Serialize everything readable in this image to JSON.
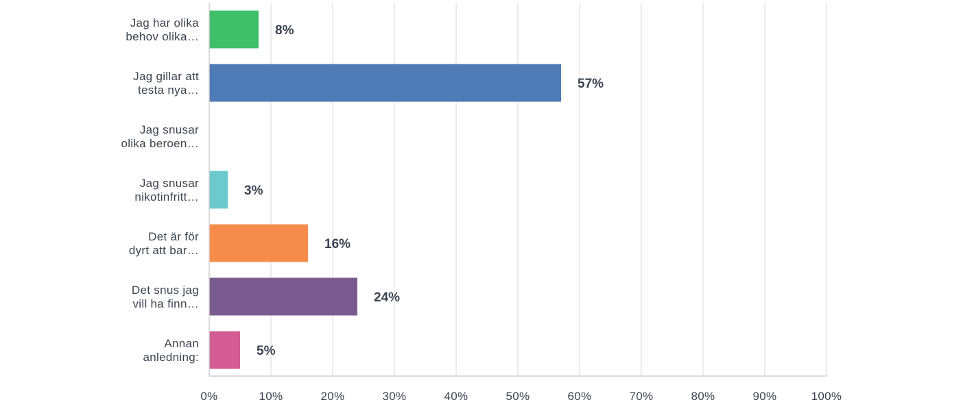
{
  "chart_data": {
    "type": "bar",
    "orientation": "horizontal",
    "categories": [
      "Jag har olika behov olika…",
      "Jag gillar att testa nya…",
      "Jag snusar olika beroen…",
      "Jag snusar nikotinfritt…",
      "Det är för dyrt att bar…",
      "Det snus jag vill ha finn…",
      "Annan anledning:"
    ],
    "category_lines": [
      [
        "Jag har olika",
        "behov olika…"
      ],
      [
        "Jag gillar att",
        "testa nya…"
      ],
      [
        "Jag snusar",
        "olika beroen…"
      ],
      [
        "Jag snusar",
        "nikotinfritt…"
      ],
      [
        "Det är för",
        "dyrt att bar…"
      ],
      [
        "Det snus jag",
        "vill ha finn…"
      ],
      [
        "Annan",
        "anledning:"
      ]
    ],
    "values": [
      8,
      57,
      0,
      3,
      16,
      24,
      5
    ],
    "value_labels": [
      "8%",
      "57%",
      "",
      "3%",
      "16%",
      "24%",
      "5%"
    ],
    "colors": [
      "#3fbf6a",
      "#4e7ab5",
      "#cccccc",
      "#6cc9cd",
      "#f68c4c",
      "#7a5b8f",
      "#d35c92"
    ],
    "x_ticks": [
      "0%",
      "10%",
      "20%",
      "30%",
      "40%",
      "50%",
      "60%",
      "70%",
      "80%",
      "90%",
      "100%"
    ],
    "xlim": [
      0,
      100
    ],
    "grid": true,
    "legend": "none"
  }
}
